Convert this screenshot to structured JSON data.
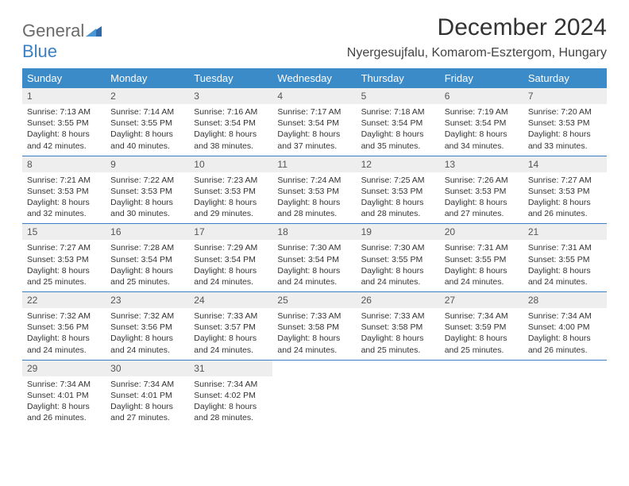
{
  "brand": {
    "word1": "General",
    "word2": "Blue"
  },
  "title": "December 2024",
  "subtitle": "Nyergesujfalu, Komarom-Esztergom, Hungary",
  "colors": {
    "header_bg": "#3b8bc9",
    "header_text": "#ffffff",
    "daynum_bg": "#eeeeee",
    "row_divider": "#3b7fc4",
    "brand_gray": "#6a6a6a",
    "brand_blue": "#3b7fc4",
    "body_text": "#333333"
  },
  "weekdays": [
    "Sunday",
    "Monday",
    "Tuesday",
    "Wednesday",
    "Thursday",
    "Friday",
    "Saturday"
  ],
  "weeks": [
    [
      {
        "n": "1",
        "sunrise": "7:13 AM",
        "sunset": "3:55 PM",
        "daylight": "8 hours and 42 minutes."
      },
      {
        "n": "2",
        "sunrise": "7:14 AM",
        "sunset": "3:55 PM",
        "daylight": "8 hours and 40 minutes."
      },
      {
        "n": "3",
        "sunrise": "7:16 AM",
        "sunset": "3:54 PM",
        "daylight": "8 hours and 38 minutes."
      },
      {
        "n": "4",
        "sunrise": "7:17 AM",
        "sunset": "3:54 PM",
        "daylight": "8 hours and 37 minutes."
      },
      {
        "n": "5",
        "sunrise": "7:18 AM",
        "sunset": "3:54 PM",
        "daylight": "8 hours and 35 minutes."
      },
      {
        "n": "6",
        "sunrise": "7:19 AM",
        "sunset": "3:54 PM",
        "daylight": "8 hours and 34 minutes."
      },
      {
        "n": "7",
        "sunrise": "7:20 AM",
        "sunset": "3:53 PM",
        "daylight": "8 hours and 33 minutes."
      }
    ],
    [
      {
        "n": "8",
        "sunrise": "7:21 AM",
        "sunset": "3:53 PM",
        "daylight": "8 hours and 32 minutes."
      },
      {
        "n": "9",
        "sunrise": "7:22 AM",
        "sunset": "3:53 PM",
        "daylight": "8 hours and 30 minutes."
      },
      {
        "n": "10",
        "sunrise": "7:23 AM",
        "sunset": "3:53 PM",
        "daylight": "8 hours and 29 minutes."
      },
      {
        "n": "11",
        "sunrise": "7:24 AM",
        "sunset": "3:53 PM",
        "daylight": "8 hours and 28 minutes."
      },
      {
        "n": "12",
        "sunrise": "7:25 AM",
        "sunset": "3:53 PM",
        "daylight": "8 hours and 28 minutes."
      },
      {
        "n": "13",
        "sunrise": "7:26 AM",
        "sunset": "3:53 PM",
        "daylight": "8 hours and 27 minutes."
      },
      {
        "n": "14",
        "sunrise": "7:27 AM",
        "sunset": "3:53 PM",
        "daylight": "8 hours and 26 minutes."
      }
    ],
    [
      {
        "n": "15",
        "sunrise": "7:27 AM",
        "sunset": "3:53 PM",
        "daylight": "8 hours and 25 minutes."
      },
      {
        "n": "16",
        "sunrise": "7:28 AM",
        "sunset": "3:54 PM",
        "daylight": "8 hours and 25 minutes."
      },
      {
        "n": "17",
        "sunrise": "7:29 AM",
        "sunset": "3:54 PM",
        "daylight": "8 hours and 24 minutes."
      },
      {
        "n": "18",
        "sunrise": "7:30 AM",
        "sunset": "3:54 PM",
        "daylight": "8 hours and 24 minutes."
      },
      {
        "n": "19",
        "sunrise": "7:30 AM",
        "sunset": "3:55 PM",
        "daylight": "8 hours and 24 minutes."
      },
      {
        "n": "20",
        "sunrise": "7:31 AM",
        "sunset": "3:55 PM",
        "daylight": "8 hours and 24 minutes."
      },
      {
        "n": "21",
        "sunrise": "7:31 AM",
        "sunset": "3:55 PM",
        "daylight": "8 hours and 24 minutes."
      }
    ],
    [
      {
        "n": "22",
        "sunrise": "7:32 AM",
        "sunset": "3:56 PM",
        "daylight": "8 hours and 24 minutes."
      },
      {
        "n": "23",
        "sunrise": "7:32 AM",
        "sunset": "3:56 PM",
        "daylight": "8 hours and 24 minutes."
      },
      {
        "n": "24",
        "sunrise": "7:33 AM",
        "sunset": "3:57 PM",
        "daylight": "8 hours and 24 minutes."
      },
      {
        "n": "25",
        "sunrise": "7:33 AM",
        "sunset": "3:58 PM",
        "daylight": "8 hours and 24 minutes."
      },
      {
        "n": "26",
        "sunrise": "7:33 AM",
        "sunset": "3:58 PM",
        "daylight": "8 hours and 25 minutes."
      },
      {
        "n": "27",
        "sunrise": "7:34 AM",
        "sunset": "3:59 PM",
        "daylight": "8 hours and 25 minutes."
      },
      {
        "n": "28",
        "sunrise": "7:34 AM",
        "sunset": "4:00 PM",
        "daylight": "8 hours and 26 minutes."
      }
    ],
    [
      {
        "n": "29",
        "sunrise": "7:34 AM",
        "sunset": "4:01 PM",
        "daylight": "8 hours and 26 minutes."
      },
      {
        "n": "30",
        "sunrise": "7:34 AM",
        "sunset": "4:01 PM",
        "daylight": "8 hours and 27 minutes."
      },
      {
        "n": "31",
        "sunrise": "7:34 AM",
        "sunset": "4:02 PM",
        "daylight": "8 hours and 28 minutes."
      },
      null,
      null,
      null,
      null
    ]
  ],
  "labels": {
    "sunrise": "Sunrise:",
    "sunset": "Sunset:",
    "daylight": "Daylight:"
  }
}
